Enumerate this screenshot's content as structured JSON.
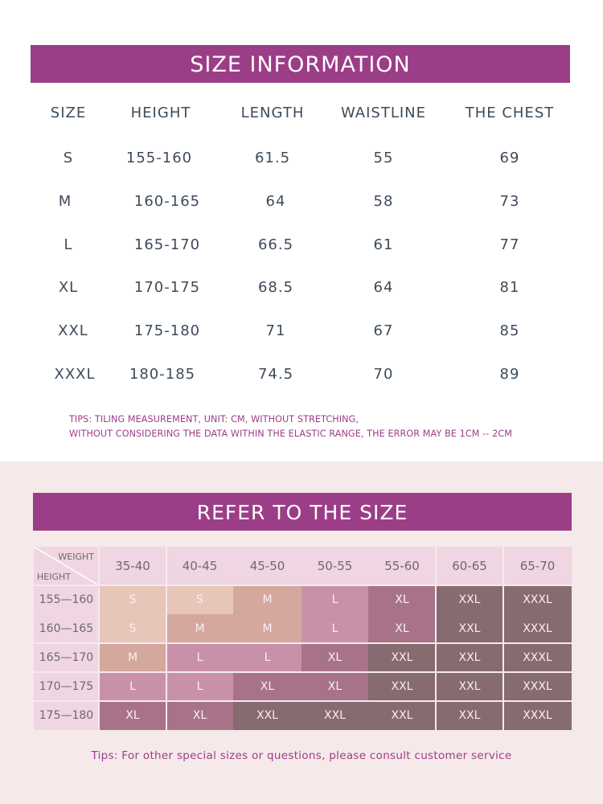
{
  "size_info": {
    "title": "SIZE INFORMATION",
    "columns": [
      "SIZE",
      "HEIGHT",
      "LENGTH",
      "WAISTLINE",
      "THE CHEST"
    ],
    "rows": [
      [
        "S",
        "155-160",
        "61.5",
        "55",
        "69"
      ],
      [
        "M",
        "160-165",
        "64",
        "58",
        "73"
      ],
      [
        "L",
        "165-170",
        "66.5",
        "61",
        "77"
      ],
      [
        "XL",
        "170-175",
        "68.5",
        "64",
        "81"
      ],
      [
        "XXL",
        "175-180",
        "71",
        "67",
        "85"
      ],
      [
        "XXXL",
        "180-185",
        "74.5",
        "70",
        "89"
      ]
    ],
    "tips_line1": "TIPS: TILING MEASUREMENT, UNIT: CM, WITHOUT STRETCHING,",
    "tips_line2": "WITHOUT CONSIDERING THE DATA WITHIN THE ELASTIC RANGE, THE ERROR MAY BE 1CM -- 2CM"
  },
  "refer": {
    "title": "REFER TO THE SIZE",
    "corner_top": "WEIGHT",
    "corner_bottom": "HEIGHT",
    "weights": [
      "35-40",
      "40-45",
      "45-50",
      "50-55",
      "55-60",
      "60-65",
      "65-70"
    ],
    "heights": [
      "155—160",
      "160—165",
      "165—170",
      "170—175",
      "175—180"
    ],
    "cells": [
      [
        "S",
        "S",
        "M",
        "L",
        "XL",
        "XXL",
        "XXXL"
      ],
      [
        "S",
        "M",
        "M",
        "L",
        "XL",
        "XXL",
        "XXXL"
      ],
      [
        "M",
        "L",
        "L",
        "XL",
        "XXL",
        "XXL",
        "XXXL"
      ],
      [
        "L",
        "L",
        "XL",
        "XL",
        "XXL",
        "XXL",
        "XXXL"
      ],
      [
        "XL",
        "XL",
        "XXL",
        "XXL",
        "XXL",
        "XXL",
        "XXXL"
      ]
    ],
    "size_colors": {
      "S": "#e7c6b9",
      "M": "#d4a89d",
      "L": "#c991a8",
      "XL": "#a87389",
      "XXL": "#866b70",
      "XXXL": "#866b70"
    },
    "tips": "Tips: For other special sizes or questions, please consult customer service"
  },
  "colors": {
    "accent": "#9c3d88",
    "text": "#3d4b5a",
    "bottom_bg": "#f5e9e9",
    "header_bg": "#f0d5e2"
  }
}
